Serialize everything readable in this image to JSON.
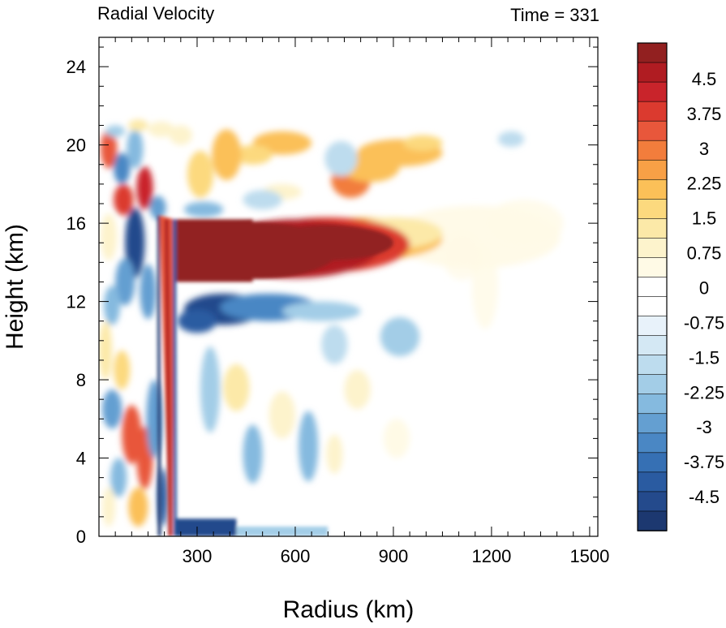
{
  "chart_data": {
    "type": "heatmap",
    "title_left": "Radial Velocity",
    "title_right": "Time = 331",
    "xlabel": "Radius (km)",
    "ylabel": "Height (km)",
    "xlim": [
      0,
      1525
    ],
    "ylim": [
      0,
      25.5
    ],
    "x_ticks": [
      300,
      600,
      900,
      1200,
      1500
    ],
    "y_ticks": [
      0,
      4,
      8,
      12,
      16,
      20,
      24
    ],
    "colorbar": {
      "range": [
        -5.25,
        5.25
      ],
      "step": 0.375,
      "labels": [
        "4.5",
        "3.75",
        "3",
        "2.25",
        "1.5",
        "0.75",
        "0",
        "-0.75",
        "-1.5",
        "-2.25",
        "-3",
        "-3.75",
        "-4.5"
      ],
      "label_values": [
        4.5,
        3.75,
        3,
        2.25,
        1.5,
        0.75,
        0,
        -0.75,
        -1.5,
        -2.25,
        -3,
        -3.75,
        -4.5
      ],
      "colors": [
        "#922020",
        "#b01c22",
        "#c9242b",
        "#db3a2f",
        "#e8573b",
        "#f27d3c",
        "#f8a046",
        "#fbc058",
        "#fcd97e",
        "#fce9a8",
        "#fdf3cc",
        "#fffae6",
        "#ffffff",
        "#ffffff",
        "#e8f2fa",
        "#d4e8f4",
        "#bddcee",
        "#a3cde7",
        "#85badf",
        "#649fd1",
        "#4a87c4",
        "#3670b4",
        "#2a5ba1",
        "#244a8c",
        "#1c3870"
      ]
    },
    "features": [
      {
        "name": "upper-level outflow",
        "sign": "positive",
        "r_range": [
          230,
          1000
        ],
        "z_range": [
          13,
          16.3
        ],
        "peak": 5.25
      },
      {
        "name": "outflow tail",
        "sign": "positive",
        "r_range": [
          1000,
          1400
        ],
        "z_range": [
          14,
          17
        ],
        "peak": 1.0
      },
      {
        "name": "upper bands",
        "sign": "positive",
        "r_range": [
          120,
          1100
        ],
        "z_range": [
          17,
          21
        ],
        "peak": 3.0
      },
      {
        "name": "inflow below outflow",
        "sign": "negative",
        "r_range": [
          230,
          700
        ],
        "z_range": [
          10.5,
          12.8
        ],
        "peak": -3.5
      },
      {
        "name": "eyewall region",
        "sign": "mixed",
        "r_range": [
          0,
          235
        ],
        "z_range": [
          0,
          21
        ],
        "peak": 4.5
      },
      {
        "name": "boundary-layer inflow",
        "sign": "negative",
        "r_range": [
          235,
          470
        ],
        "z_range": [
          0,
          1
        ],
        "peak": -4.5
      }
    ]
  }
}
